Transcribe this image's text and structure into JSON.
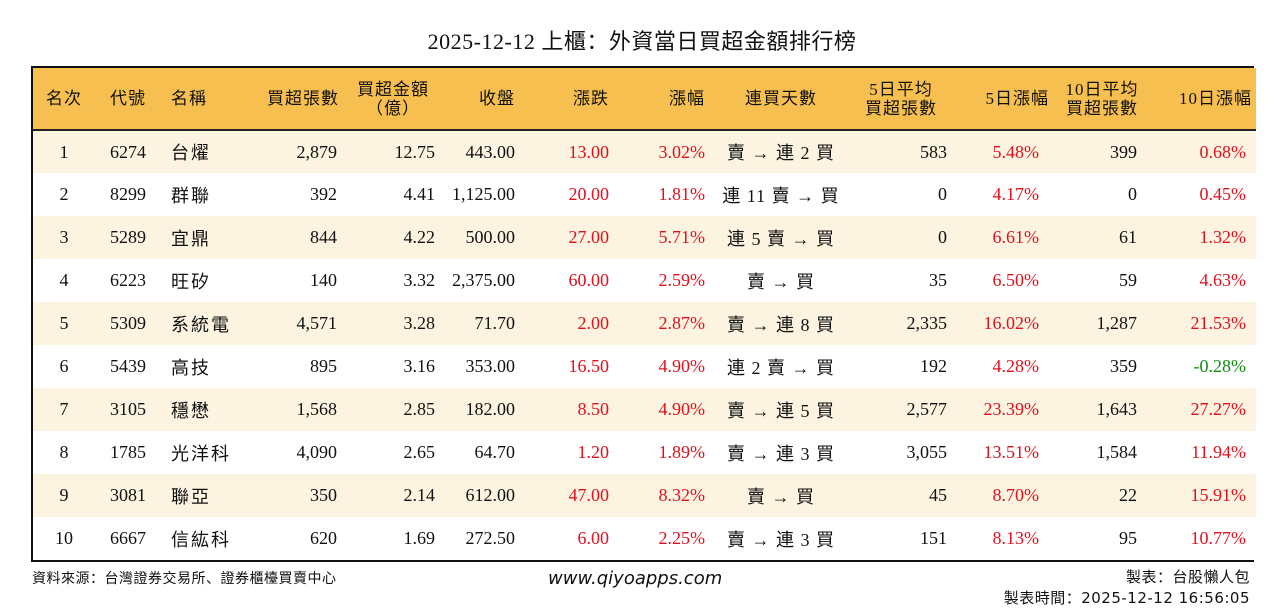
{
  "title": "2025-12-12 上櫃：外資當日買超金額排行榜",
  "colors": {
    "header_bg": "#f6bf4f",
    "odd_row_bg": "#fcf3e0",
    "even_row_bg": "#ffffff",
    "up": "#e0101c",
    "down": "#148a14"
  },
  "columns": [
    {
      "key": "rank",
      "label": "名次"
    },
    {
      "key": "code",
      "label": "代號"
    },
    {
      "key": "name",
      "label": "名稱"
    },
    {
      "key": "net_buy_lots",
      "label": "買超張數"
    },
    {
      "key": "net_buy_amount",
      "label": "買超金額",
      "label2": "（億）"
    },
    {
      "key": "close",
      "label": "收盤"
    },
    {
      "key": "change",
      "label": "漲跌"
    },
    {
      "key": "change_pct",
      "label": "漲幅"
    },
    {
      "key": "streak",
      "label": "連買天數"
    },
    {
      "key": "avg5_lots",
      "label": "5日平均",
      "label2": "買超張數"
    },
    {
      "key": "chg5_pct",
      "label": "5日漲幅"
    },
    {
      "key": "avg10_lots",
      "label": "10日平均",
      "label2": "買超張數"
    },
    {
      "key": "chg10_pct",
      "label": "10日漲幅"
    }
  ],
  "rows": [
    {
      "rank": "1",
      "code": "6274",
      "name": "台燿",
      "net_buy_lots": "2,879",
      "net_buy_amount": "12.75",
      "close": "443.00",
      "change": "13.00",
      "change_pct": "3.02%",
      "streak": "賣 → 連 2 買",
      "avg5_lots": "583",
      "chg5_pct": "5.48%",
      "avg10_lots": "399",
      "chg10_pct": "0.68%",
      "chg10_dir": "up"
    },
    {
      "rank": "2",
      "code": "8299",
      "name": "群聯",
      "net_buy_lots": "392",
      "net_buy_amount": "4.41",
      "close": "1,125.00",
      "change": "20.00",
      "change_pct": "1.81%",
      "streak": "連 11 賣 → 買",
      "avg5_lots": "0",
      "chg5_pct": "4.17%",
      "avg10_lots": "0",
      "chg10_pct": "0.45%",
      "chg10_dir": "up"
    },
    {
      "rank": "3",
      "code": "5289",
      "name": "宜鼎",
      "net_buy_lots": "844",
      "net_buy_amount": "4.22",
      "close": "500.00",
      "change": "27.00",
      "change_pct": "5.71%",
      "streak": "連 5 賣 → 買",
      "avg5_lots": "0",
      "chg5_pct": "6.61%",
      "avg10_lots": "61",
      "chg10_pct": "1.32%",
      "chg10_dir": "up"
    },
    {
      "rank": "4",
      "code": "6223",
      "name": "旺矽",
      "net_buy_lots": "140",
      "net_buy_amount": "3.32",
      "close": "2,375.00",
      "change": "60.00",
      "change_pct": "2.59%",
      "streak": "賣 → 買",
      "avg5_lots": "35",
      "chg5_pct": "6.50%",
      "avg10_lots": "59",
      "chg10_pct": "4.63%",
      "chg10_dir": "up"
    },
    {
      "rank": "5",
      "code": "5309",
      "name": "系統電",
      "net_buy_lots": "4,571",
      "net_buy_amount": "3.28",
      "close": "71.70",
      "change": "2.00",
      "change_pct": "2.87%",
      "streak": "賣 → 連 8 買",
      "avg5_lots": "2,335",
      "chg5_pct": "16.02%",
      "avg10_lots": "1,287",
      "chg10_pct": "21.53%",
      "chg10_dir": "up"
    },
    {
      "rank": "6",
      "code": "5439",
      "name": "高技",
      "net_buy_lots": "895",
      "net_buy_amount": "3.16",
      "close": "353.00",
      "change": "16.50",
      "change_pct": "4.90%",
      "streak": "連 2 賣 → 買",
      "avg5_lots": "192",
      "chg5_pct": "4.28%",
      "avg10_lots": "359",
      "chg10_pct": "-0.28%",
      "chg10_dir": "down"
    },
    {
      "rank": "7",
      "code": "3105",
      "name": "穩懋",
      "net_buy_lots": "1,568",
      "net_buy_amount": "2.85",
      "close": "182.00",
      "change": "8.50",
      "change_pct": "4.90%",
      "streak": "賣 → 連 5 買",
      "avg5_lots": "2,577",
      "chg5_pct": "23.39%",
      "avg10_lots": "1,643",
      "chg10_pct": "27.27%",
      "chg10_dir": "up"
    },
    {
      "rank": "8",
      "code": "1785",
      "name": "光洋科",
      "net_buy_lots": "4,090",
      "net_buy_amount": "2.65",
      "close": "64.70",
      "change": "1.20",
      "change_pct": "1.89%",
      "streak": "賣 → 連 3 買",
      "avg5_lots": "3,055",
      "chg5_pct": "13.51%",
      "avg10_lots": "1,584",
      "chg10_pct": "11.94%",
      "chg10_dir": "up"
    },
    {
      "rank": "9",
      "code": "3081",
      "name": "聯亞",
      "net_buy_lots": "350",
      "net_buy_amount": "2.14",
      "close": "612.00",
      "change": "47.00",
      "change_pct": "8.32%",
      "streak": "賣 → 買",
      "avg5_lots": "45",
      "chg5_pct": "8.70%",
      "avg10_lots": "22",
      "chg10_pct": "15.91%",
      "chg10_dir": "up"
    },
    {
      "rank": "10",
      "code": "6667",
      "name": "信紘科",
      "net_buy_lots": "620",
      "net_buy_amount": "1.69",
      "close": "272.50",
      "change": "6.00",
      "change_pct": "2.25%",
      "streak": "賣 → 連 3 買",
      "avg5_lots": "151",
      "chg5_pct": "8.13%",
      "avg10_lots": "95",
      "chg10_pct": "10.77%",
      "chg10_dir": "up"
    }
  ],
  "footer": {
    "source": "資料來源：台灣證券交易所、證券櫃檯買賣中心",
    "url": "www.qiyoapps.com",
    "maker": "製表：台股懶人包",
    "made_time": "製表時間：2025-12-12 16:56:05"
  }
}
